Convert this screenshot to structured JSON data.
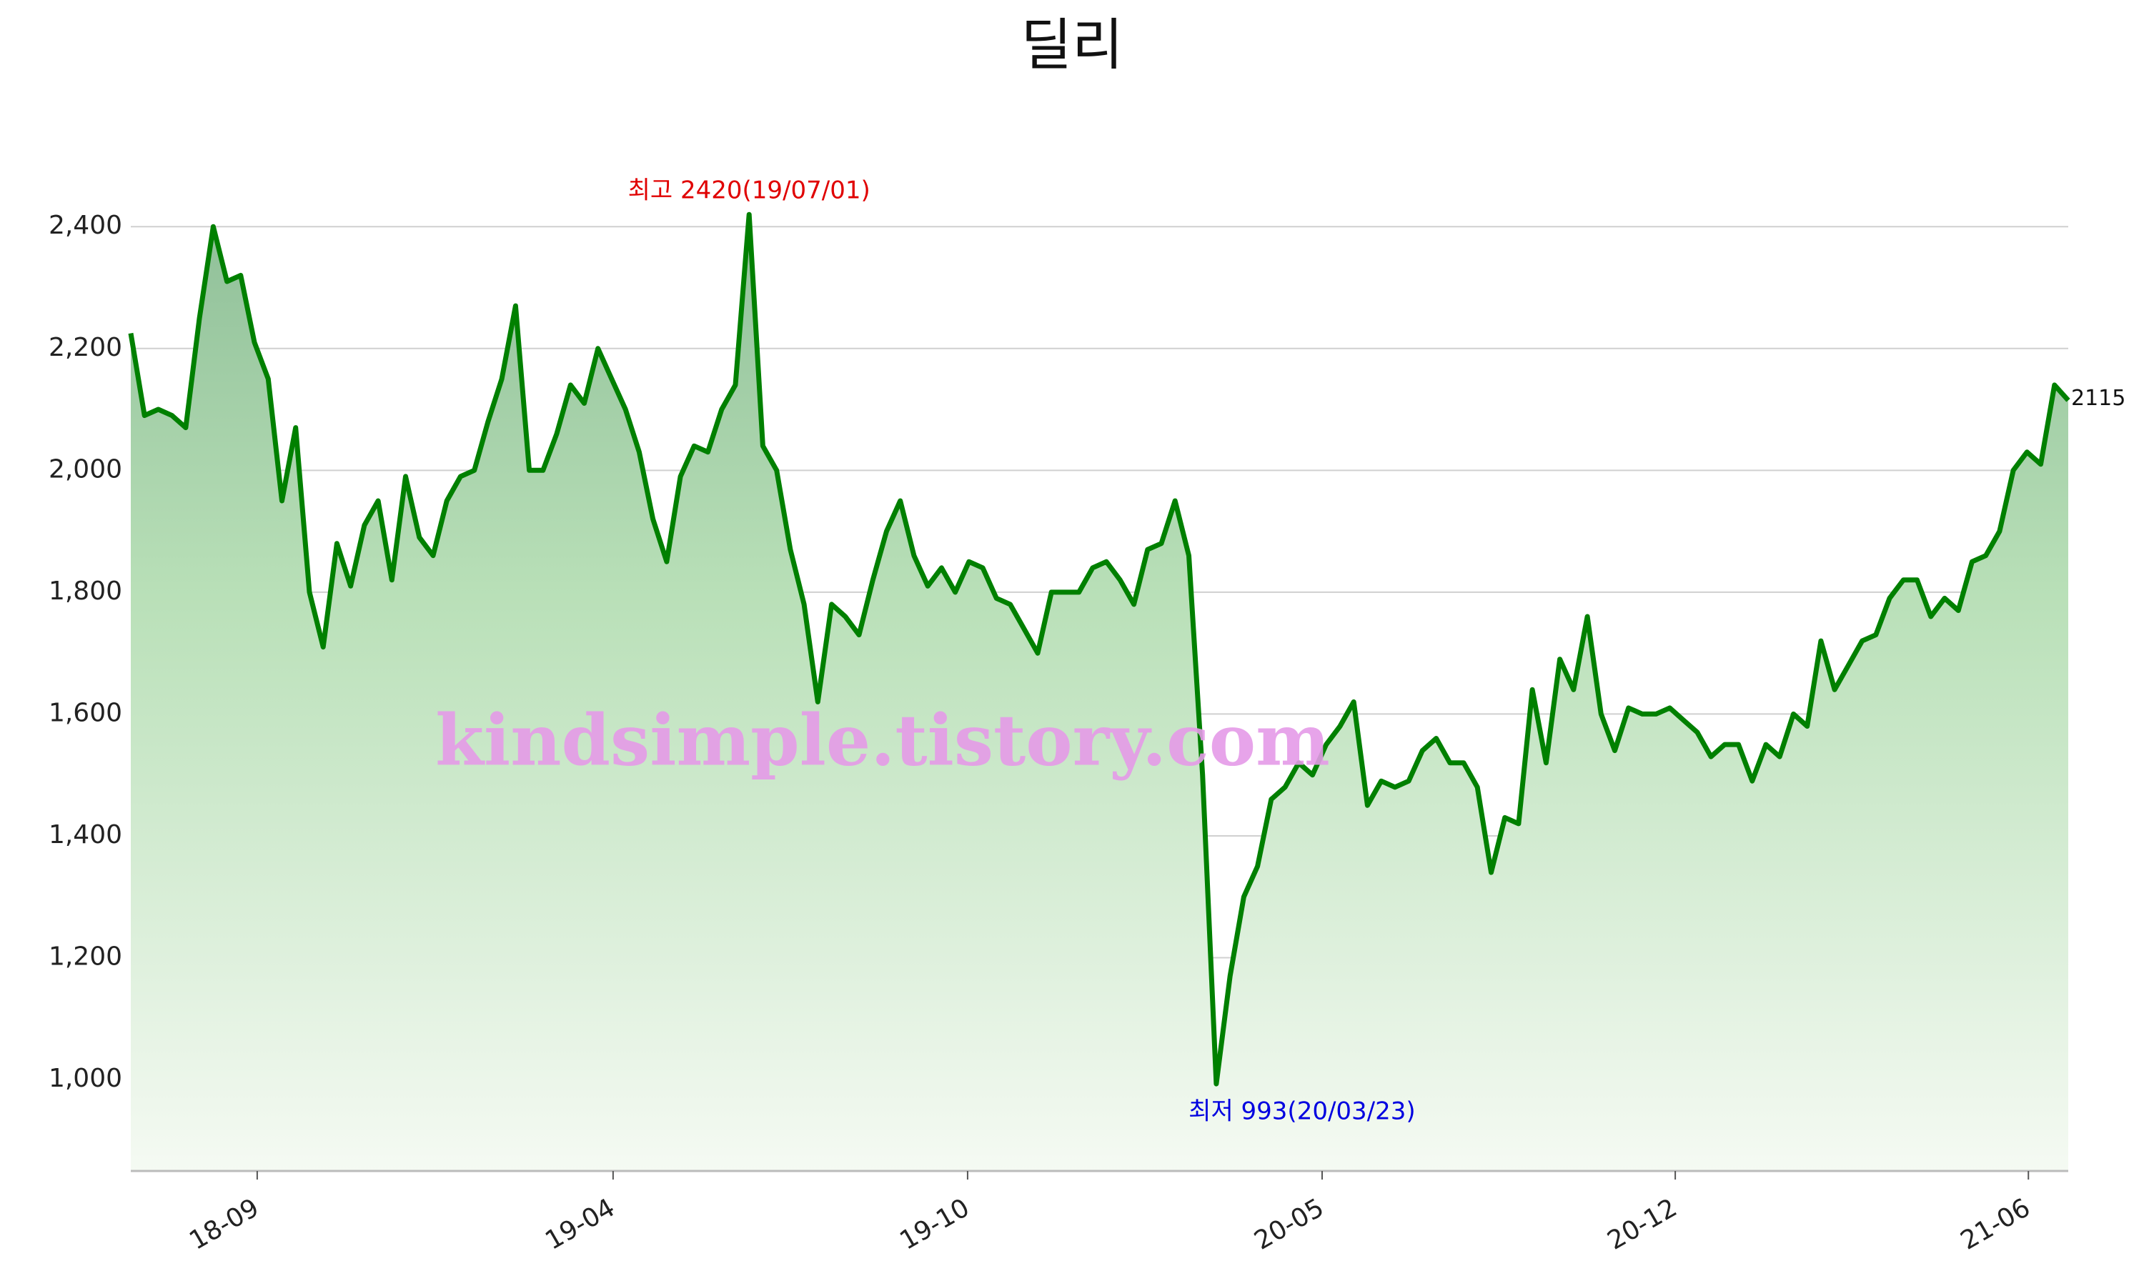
{
  "chart_data": {
    "type": "line",
    "title": "딜리",
    "series": [
      {
        "name": "딜리",
        "color": "#008000",
        "values": [
          2225,
          2090,
          2100,
          2090,
          2070,
          2250,
          2400,
          2310,
          2320,
          2210,
          2150,
          1950,
          2070,
          1800,
          1710,
          1880,
          1810,
          1910,
          1950,
          1820,
          1990,
          1890,
          1860,
          1950,
          1990,
          2000,
          2080,
          2150,
          2270,
          2000,
          2000,
          2060,
          2140,
          2110,
          2200,
          2150,
          2100,
          2030,
          1920,
          1850,
          1990,
          2040,
          2030,
          2100,
          2140,
          2420,
          2040,
          2000,
          1870,
          1780,
          1620,
          1780,
          1760,
          1730,
          1820,
          1900,
          1950,
          1860,
          1810,
          1840,
          1800,
          1850,
          1840,
          1790,
          1780,
          1740,
          1700,
          1800,
          1800,
          1800,
          1840,
          1850,
          1820,
          1780,
          1870,
          1880,
          1950,
          1860,
          1500,
          993,
          1170,
          1300,
          1350,
          1460,
          1480,
          1520,
          1500,
          1550,
          1580,
          1620,
          1450,
          1490,
          1480,
          1490,
          1540,
          1560,
          1520,
          1520,
          1480,
          1340,
          1430,
          1420,
          1640,
          1520,
          1690,
          1640,
          1760,
          1600,
          1540,
          1610,
          1600,
          1600,
          1610,
          1590,
          1570,
          1530,
          1550,
          1550,
          1490,
          1550,
          1530,
          1600,
          1580,
          1720,
          1640,
          1680,
          1720,
          1730,
          1790,
          1820,
          1820,
          1760,
          1790,
          1770,
          1850,
          1860,
          1900,
          2000,
          2030,
          2010,
          2140,
          2115
        ]
      }
    ],
    "max_label": "최고 2420(19/07/01)",
    "min_label": "최저 993(20/03/23)",
    "last_label": "2115",
    "watermark": "kindsimple.tistory.com",
    "xlim": [
      0,
      141
    ],
    "xticks": [
      {
        "value": 9.2,
        "label": "18-09"
      },
      {
        "value": 35.1,
        "label": "19-04"
      },
      {
        "value": 60.9,
        "label": "19-10"
      },
      {
        "value": 86.7,
        "label": "20-05"
      },
      {
        "value": 112.4,
        "label": "20-12"
      },
      {
        "value": 138.1,
        "label": "21-06"
      }
    ],
    "ylim": [
      850,
      2480
    ],
    "yticks": [
      {
        "value": 1000,
        "label": "1,000"
      },
      {
        "value": 1200,
        "label": "1,200"
      },
      {
        "value": 1400,
        "label": "1,400"
      },
      {
        "value": 1600,
        "label": "1,600"
      },
      {
        "value": 1800,
        "label": "1,800"
      },
      {
        "value": 2000,
        "label": "2,000"
      },
      {
        "value": 2200,
        "label": "2,200"
      },
      {
        "value": 2400,
        "label": "2,400"
      }
    ],
    "grid": true
  }
}
